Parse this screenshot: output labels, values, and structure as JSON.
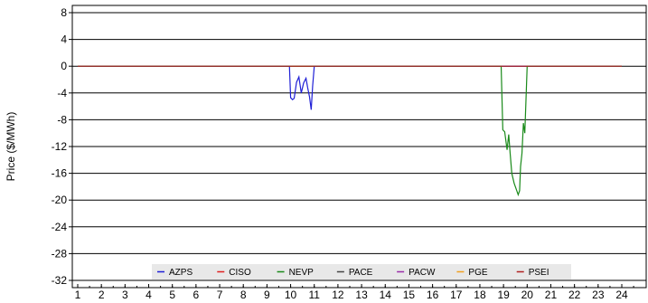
{
  "chart_data": {
    "type": "line",
    "title": "",
    "xlabel": "",
    "ylabel": "Price ($/MWh)",
    "xlim": [
      0.5,
      25
    ],
    "ylim": [
      -33,
      9
    ],
    "x_ticks": [
      1,
      2,
      3,
      4,
      5,
      6,
      7,
      8,
      9,
      10,
      11,
      12,
      13,
      14,
      15,
      16,
      17,
      18,
      19,
      20,
      21,
      22,
      23,
      24
    ],
    "y_ticks": [
      8,
      4,
      0,
      -4,
      -8,
      -12,
      -16,
      -20,
      -24,
      -28,
      -32
    ],
    "grid": "horizontal",
    "legend_position": "bottom-center",
    "series": [
      {
        "name": "AZPS",
        "color": "#1f1fd6",
        "x": [
          1,
          9.95,
          10.0,
          10.08,
          10.15,
          10.25,
          10.35,
          10.45,
          10.55,
          10.65,
          10.72,
          10.8,
          10.87,
          10.93,
          11.0,
          24
        ],
        "y": [
          0,
          0,
          -4.7,
          -5,
          -4.8,
          -2.4,
          -1.6,
          -4.0,
          -2.5,
          -1.8,
          -3.2,
          -4.6,
          -6.5,
          -3.0,
          0,
          0
        ]
      },
      {
        "name": "CISO",
        "color": "#e02020",
        "x": [
          1,
          24
        ],
        "y": [
          0,
          0
        ]
      },
      {
        "name": "NEVP",
        "color": "#1a8a1a",
        "x": [
          1,
          18.9,
          18.97,
          19.05,
          19.15,
          19.22,
          19.28,
          19.35,
          19.45,
          19.55,
          19.62,
          19.68,
          19.72,
          19.78,
          19.84,
          19.9,
          19.95,
          20.0,
          24
        ],
        "y": [
          0,
          0,
          -9.5,
          -9.8,
          -12.5,
          -10.2,
          -13,
          -16,
          -17.5,
          -18.5,
          -19.2,
          -18.6,
          -15,
          -13,
          -8.5,
          -10,
          -5,
          0,
          0
        ]
      },
      {
        "name": "PACE",
        "color": "#444444",
        "x": [
          1,
          24
        ],
        "y": [
          0,
          0
        ]
      },
      {
        "name": "PACW",
        "color": "#9a2ca8",
        "x": [
          1,
          24
        ],
        "y": [
          0,
          0
        ]
      },
      {
        "name": "PGE",
        "color": "#f0a020",
        "x": [
          1,
          24
        ],
        "y": [
          0,
          0
        ]
      },
      {
        "name": "PSEI",
        "color": "#b02020",
        "x": [
          1,
          24
        ],
        "y": [
          0,
          0
        ]
      }
    ]
  }
}
